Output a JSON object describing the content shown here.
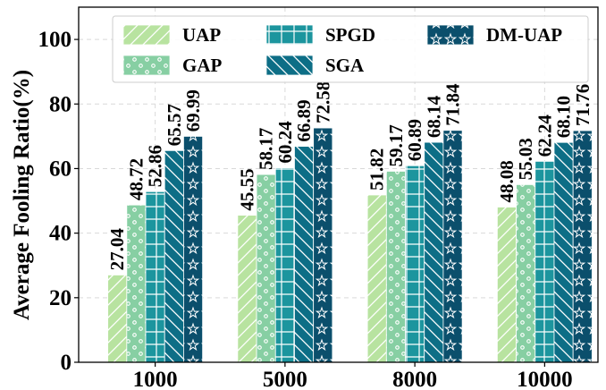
{
  "chart_data": {
    "type": "bar",
    "ylabel": "Average Fooling Ratio(%)",
    "xlabel": "",
    "ylim": [
      0,
      110
    ],
    "yticks": [
      0,
      20,
      40,
      60,
      80,
      100
    ],
    "grid": true,
    "legend_position": "top",
    "categories": [
      "1000",
      "5000",
      "8000",
      "10000"
    ],
    "series": [
      {
        "name": "UAP",
        "values": [
          27.04,
          45.55,
          51.82,
          48.08
        ],
        "labels": [
          "27.04",
          "45.55",
          "51.82",
          "48.08"
        ],
        "color": "#b8e3a0",
        "pattern": "diagonal-slash"
      },
      {
        "name": "GAP",
        "values": [
          48.72,
          58.17,
          59.17,
          55.03
        ],
        "labels": [
          "48.72",
          "58.17",
          "59.17",
          "55.03"
        ],
        "color": "#87cfa3",
        "pattern": "small-circles"
      },
      {
        "name": "SPGD",
        "values": [
          52.86,
          60.24,
          60.89,
          62.24
        ],
        "labels": [
          "52.86",
          "60.24",
          "60.89",
          "62.24"
        ],
        "color": "#1c959e",
        "pattern": "grid"
      },
      {
        "name": "SGA",
        "values": [
          65.57,
          66.89,
          68.14,
          68.1
        ],
        "labels": [
          "65.57",
          "66.89",
          "68.14",
          "68.10"
        ],
        "color": "#0d6e86",
        "pattern": "diagonal-backslash"
      },
      {
        "name": "DM-UAP",
        "values": [
          69.99,
          72.58,
          71.84,
          71.76
        ],
        "labels": [
          "69.99",
          "72.58",
          "71.84",
          "71.76"
        ],
        "color": "#0b4f6c",
        "pattern": "stars"
      }
    ]
  }
}
